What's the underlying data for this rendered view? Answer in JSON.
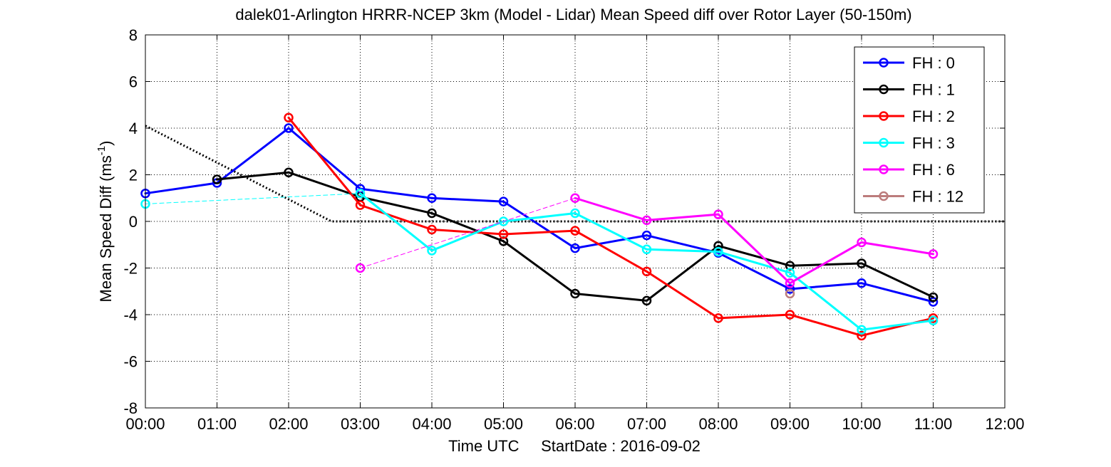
{
  "chart_data": {
    "type": "line",
    "title": "dalek01-Arlington HRRR-NCEP 3km (Model - Lidar) Mean Speed diff over Rotor Layer (50-150m)",
    "xlabel": "Time UTC     StartDate : 2016-09-02",
    "ylabel": "Mean Speed Diff (ms",
    "ylabel_sup": "-1",
    "ylabel_close": ")",
    "x_ticks": [
      "00:00",
      "01:00",
      "02:00",
      "03:00",
      "04:00",
      "05:00",
      "06:00",
      "07:00",
      "08:00",
      "09:00",
      "10:00",
      "11:00",
      "12:00"
    ],
    "y_ticks": [
      8,
      6,
      4,
      2,
      0,
      -2,
      -4,
      -6,
      -8
    ],
    "xlim": [
      0,
      12
    ],
    "ylim": [
      -8,
      8
    ],
    "grid": true,
    "legend_position": "top-right",
    "reference_line": {
      "x": [
        0,
        2.6,
        12
      ],
      "y": [
        4.1,
        0,
        0
      ],
      "color": "#000000",
      "style": "dotted"
    },
    "series": [
      {
        "name": "FH : 0",
        "color": "#0000ff",
        "points": [
          [
            0,
            1.2
          ],
          [
            1,
            1.65
          ],
          [
            2,
            4.0
          ],
          [
            3,
            1.4
          ],
          [
            4,
            1.0
          ],
          [
            5,
            0.85
          ],
          [
            6,
            -1.15
          ],
          [
            7,
            -0.6
          ],
          [
            8,
            -1.35
          ],
          [
            9,
            -2.9
          ],
          [
            10,
            -2.65
          ],
          [
            11,
            -3.45
          ]
        ],
        "gaps": []
      },
      {
        "name": "FH : 1",
        "color": "#000000",
        "points": [
          [
            1,
            1.8
          ],
          [
            2,
            2.1
          ],
          [
            3,
            1.05
          ],
          [
            4,
            0.35
          ],
          [
            5,
            -0.85
          ],
          [
            6,
            -3.1
          ],
          [
            7,
            -3.4
          ],
          [
            8,
            -1.05
          ],
          [
            9,
            -1.9
          ],
          [
            10,
            -1.8
          ],
          [
            11,
            -3.25
          ]
        ],
        "gaps": []
      },
      {
        "name": "FH : 2",
        "color": "#ff0000",
        "points": [
          [
            2,
            4.45
          ],
          [
            3,
            0.7
          ],
          [
            4,
            -0.35
          ],
          [
            5,
            -0.55
          ],
          [
            6,
            -0.4
          ],
          [
            7,
            -2.15
          ],
          [
            8,
            -4.15
          ],
          [
            9,
            -4.0
          ],
          [
            10,
            -4.9
          ],
          [
            11,
            -4.15
          ]
        ],
        "gaps": []
      },
      {
        "name": "FH : 3",
        "color": "#00ffff",
        "points": [
          [
            0,
            0.75
          ],
          [
            3,
            1.2
          ],
          [
            4,
            -1.25
          ],
          [
            5,
            0.0
          ],
          [
            6,
            0.35
          ],
          [
            7,
            -1.2
          ],
          [
            8,
            -1.3
          ],
          [
            9,
            -2.2
          ],
          [
            10,
            -4.65
          ],
          [
            11,
            -4.25
          ]
        ],
        "gaps": [
          0
        ]
      },
      {
        "name": "FH : 6",
        "color": "#ff00ff",
        "points": [
          [
            3,
            -2.0
          ],
          [
            6,
            1.0
          ],
          [
            7,
            0.05
          ],
          [
            8,
            0.3
          ],
          [
            9,
            -2.65
          ],
          [
            10,
            -0.9
          ],
          [
            11,
            -1.4
          ]
        ],
        "gaps": [
          0
        ]
      },
      {
        "name": "FH : 12",
        "color": "#bc7c7c",
        "points": [
          [
            9,
            -3.1
          ]
        ],
        "gaps": []
      }
    ]
  }
}
